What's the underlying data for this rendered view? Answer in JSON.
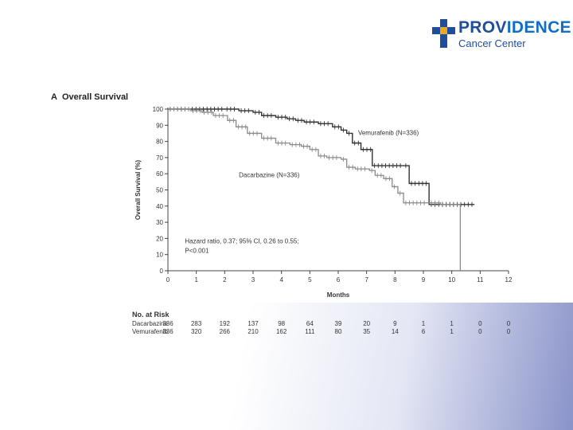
{
  "logo": {
    "name_part1": "PROV",
    "name_part2": "IDENCE",
    "subtitle": "Cancer Center",
    "colors": {
      "blue": "#1f4e9c",
      "gold": "#f0a81e"
    }
  },
  "panel": {
    "letter": "A",
    "title": "Overall Survival"
  },
  "chart_data": {
    "type": "line",
    "title": "Overall Survival",
    "xlabel": "Months",
    "ylabel": "Overall Survival (%)",
    "xlim": [
      0,
      12
    ],
    "ylim": [
      0,
      100
    ],
    "x_ticks": [
      "0",
      "1",
      "2",
      "3",
      "4",
      "5",
      "6",
      "7",
      "8",
      "9",
      "10",
      "11",
      "12"
    ],
    "y_ticks": [
      "0",
      "10",
      "20",
      "30",
      "40",
      "50",
      "60",
      "70",
      "80",
      "90",
      "100"
    ],
    "grid": false,
    "series": [
      {
        "name": "Vemurafenib (N=336)",
        "color": "#333333",
        "points": [
          [
            0,
            100
          ],
          [
            2,
            100
          ],
          [
            2.5,
            99
          ],
          [
            3,
            98
          ],
          [
            3.3,
            96
          ],
          [
            3.8,
            95
          ],
          [
            4.2,
            94
          ],
          [
            4.5,
            93
          ],
          [
            4.8,
            92
          ],
          [
            5.3,
            91
          ],
          [
            5.8,
            89
          ],
          [
            6.1,
            87
          ],
          [
            6.3,
            85
          ],
          [
            6.5,
            79
          ],
          [
            6.8,
            75
          ],
          [
            7.2,
            65
          ],
          [
            8.3,
            65
          ],
          [
            8.5,
            54
          ],
          [
            9.2,
            54
          ],
          [
            9.2,
            41
          ],
          [
            10.8,
            41
          ]
        ],
        "label_x": 6.7,
        "label_y": 84
      },
      {
        "name": "Dacarbazine (N=336)",
        "color": "#8a8a8a",
        "points": [
          [
            0,
            100
          ],
          [
            0.8,
            99
          ],
          [
            1.2,
            98
          ],
          [
            1.6,
            96
          ],
          [
            2.1,
            93
          ],
          [
            2.4,
            89
          ],
          [
            2.8,
            85
          ],
          [
            3.3,
            82
          ],
          [
            3.8,
            79
          ],
          [
            4.3,
            78
          ],
          [
            4.7,
            77
          ],
          [
            5.0,
            75
          ],
          [
            5.3,
            71
          ],
          [
            5.6,
            70
          ],
          [
            6.1,
            69
          ],
          [
            6.3,
            64
          ],
          [
            6.6,
            63
          ],
          [
            7.1,
            62
          ],
          [
            7.3,
            59
          ],
          [
            7.6,
            57
          ],
          [
            7.9,
            52
          ],
          [
            8.1,
            48
          ],
          [
            8.3,
            42
          ],
          [
            9.2,
            42
          ],
          [
            9.6,
            41
          ],
          [
            10.3,
            41
          ],
          [
            10.3,
            0
          ]
        ],
        "label_x": 2.5,
        "label_y": 58
      }
    ],
    "annotation": {
      "line1": "Hazard ratio, 0.37; 95% CI, 0.26 to 0.55;",
      "line2": "P<0.001"
    },
    "risk_table": {
      "title": "No. at Risk",
      "rows": [
        {
          "name": "Dacarbazine",
          "values": [
            "336",
            "283",
            "192",
            "137",
            "98",
            "64",
            "39",
            "20",
            "9",
            "1",
            "1",
            "0",
            "0"
          ]
        },
        {
          "name": "Vemurafenib",
          "values": [
            "336",
            "320",
            "266",
            "210",
            "162",
            "111",
            "80",
            "35",
            "14",
            "6",
            "1",
            "0",
            "0"
          ]
        }
      ]
    }
  }
}
